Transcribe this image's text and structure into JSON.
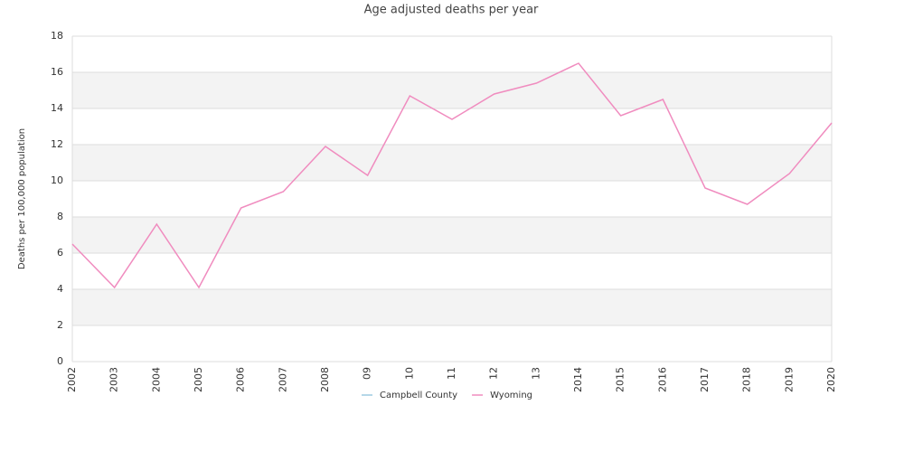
{
  "chart_data": {
    "type": "line",
    "title": "Age adjusted deaths per year",
    "ylabel": "Deaths per 100,000 population",
    "categories": [
      "2002",
      "2003",
      "2004",
      "2005",
      "2006",
      "2007",
      "2008",
      "09",
      "10",
      "11",
      "12",
      "13",
      "2014",
      "2015",
      "2016",
      "2017",
      "2018",
      "2019",
      "2020"
    ],
    "series": [
      {
        "name": "Campbell County",
        "color": "#9ecae1",
        "values": [
          null,
          null,
          null,
          null,
          null,
          null,
          null,
          null,
          null,
          null,
          null,
          null,
          null,
          null,
          null,
          null,
          null,
          null,
          null
        ]
      },
      {
        "name": "Wyoming",
        "color": "#f08cbf",
        "values": [
          6.5,
          4.1,
          7.6,
          4.1,
          8.5,
          9.4,
          11.9,
          10.3,
          14.7,
          13.4,
          14.8,
          15.4,
          16.5,
          13.6,
          14.5,
          9.6,
          8.7,
          10.4,
          13.2
        ]
      }
    ],
    "ylim": [
      0,
      18
    ],
    "yticks": [
      0,
      2,
      4,
      6,
      8,
      10,
      12,
      14,
      16,
      18
    ],
    "grid": true
  }
}
